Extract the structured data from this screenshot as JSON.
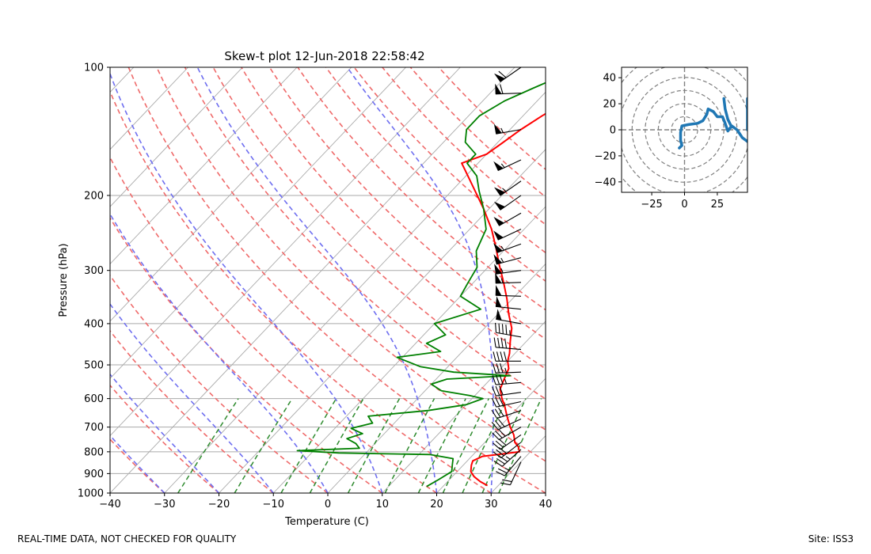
{
  "footer": {
    "left": "REAL-TIME DATA, NOT CHECKED FOR QUALITY",
    "right": "Site: ISS3"
  },
  "colors": {
    "temperature": "#ff0000",
    "dewpoint": "#008000",
    "dry_adiabats": "#ef6a6a",
    "moist_adiabats": "#6f6ff0",
    "mixing_ratio": "#2e8b2e",
    "isotherms": "#aaaaaa",
    "hodograph": "#1f77b4",
    "barbs": "#000000"
  },
  "chart_data": [
    {
      "type": "skew-t",
      "title": "Skew-t plot 12-Jun-2018 22:58:42",
      "xlabel": "Temperature (C)",
      "ylabel": "Pressure (hPa)",
      "xlim": [
        -40,
        40
      ],
      "ylim": [
        1000,
        100
      ],
      "y_scale": "log",
      "grid": true,
      "x_ticks": [
        "−40",
        "−30",
        "−20",
        "−10",
        "0",
        "10",
        "20",
        "30",
        "40"
      ],
      "y_ticks": [
        "100",
        "200",
        "300",
        "400",
        "500",
        "600",
        "700",
        "800",
        "900",
        "1000"
      ],
      "temperature": [
        {
          "p": 960,
          "t": 28
        },
        {
          "p": 940,
          "t": 26
        },
        {
          "p": 915,
          "t": 24
        },
        {
          "p": 890,
          "t": 22.5
        },
        {
          "p": 860,
          "t": 21.5
        },
        {
          "p": 840,
          "t": 21
        },
        {
          "p": 820,
          "t": 22
        },
        {
          "p": 800,
          "t": 28
        },
        {
          "p": 780,
          "t": 27
        },
        {
          "p": 760,
          "t": 25.5
        },
        {
          "p": 730,
          "t": 24
        },
        {
          "p": 700,
          "t": 22
        },
        {
          "p": 660,
          "t": 19.5
        },
        {
          "p": 620,
          "t": 17
        },
        {
          "p": 600,
          "t": 15.5
        },
        {
          "p": 570,
          "t": 13.5
        },
        {
          "p": 540,
          "t": 12.5
        },
        {
          "p": 510,
          "t": 11.5
        },
        {
          "p": 490,
          "t": 10
        },
        {
          "p": 470,
          "t": 9
        },
        {
          "p": 440,
          "t": 7
        },
        {
          "p": 410,
          "t": 5
        },
        {
          "p": 380,
          "t": 2
        },
        {
          "p": 350,
          "t": -1
        },
        {
          "p": 320,
          "t": -4.5
        },
        {
          "p": 290,
          "t": -8.5
        },
        {
          "p": 265,
          "t": -12
        },
        {
          "p": 240,
          "t": -16
        },
        {
          "p": 215,
          "t": -21
        },
        {
          "p": 190,
          "t": -27
        },
        {
          "p": 175,
          "t": -31
        },
        {
          "p": 168,
          "t": -33
        },
        {
          "p": 160,
          "t": -30
        },
        {
          "p": 150,
          "t": -29
        },
        {
          "p": 140,
          "t": -28
        },
        {
          "p": 130,
          "t": -26.5
        },
        {
          "p": 120,
          "t": -24.5
        },
        {
          "p": 112,
          "t": -22.5
        },
        {
          "p": 106,
          "t": -25.5
        },
        {
          "p": 100,
          "t": -25.5
        }
      ],
      "dewpoint": [
        {
          "p": 965,
          "t": 17
        },
        {
          "p": 930,
          "t": 18
        },
        {
          "p": 890,
          "t": 19
        },
        {
          "p": 860,
          "t": 18
        },
        {
          "p": 830,
          "t": 17
        },
        {
          "p": 812,
          "t": 12
        },
        {
          "p": 805,
          "t": -5
        },
        {
          "p": 795,
          "t": -13
        },
        {
          "p": 785,
          "t": -2
        },
        {
          "p": 765,
          "t": -3.5
        },
        {
          "p": 745,
          "t": -6
        },
        {
          "p": 725,
          "t": -4
        },
        {
          "p": 705,
          "t": -7
        },
        {
          "p": 685,
          "t": -4
        },
        {
          "p": 660,
          "t": -6
        },
        {
          "p": 640,
          "t": 4
        },
        {
          "p": 620,
          "t": 10
        },
        {
          "p": 600,
          "t": 12
        },
        {
          "p": 590,
          "t": 9
        },
        {
          "p": 575,
          "t": 3
        },
        {
          "p": 555,
          "t": 0
        },
        {
          "p": 540,
          "t": 2
        },
        {
          "p": 530,
          "t": 13
        },
        {
          "p": 520,
          "t": 2
        },
        {
          "p": 505,
          "t": -5
        },
        {
          "p": 480,
          "t": -11
        },
        {
          "p": 465,
          "t": -4
        },
        {
          "p": 445,
          "t": -8
        },
        {
          "p": 425,
          "t": -6
        },
        {
          "p": 400,
          "t": -10
        },
        {
          "p": 370,
          "t": -4
        },
        {
          "p": 345,
          "t": -10
        },
        {
          "p": 320,
          "t": -11
        },
        {
          "p": 295,
          "t": -12
        },
        {
          "p": 270,
          "t": -15
        },
        {
          "p": 240,
          "t": -17
        },
        {
          "p": 215,
          "t": -21
        },
        {
          "p": 195,
          "t": -25
        },
        {
          "p": 180,
          "t": -28
        },
        {
          "p": 168,
          "t": -32
        },
        {
          "p": 160,
          "t": -32
        },
        {
          "p": 150,
          "t": -36
        },
        {
          "p": 140,
          "t": -38
        },
        {
          "p": 130,
          "t": -38
        },
        {
          "p": 120,
          "t": -36
        },
        {
          "p": 112,
          "t": -33
        },
        {
          "p": 105,
          "t": -30
        },
        {
          "p": 100,
          "t": -28
        }
      ],
      "wind_barbs": [
        {
          "p": 100,
          "speed": 60,
          "dir": 235
        },
        {
          "p": 115,
          "speed": 60,
          "dir": 268
        },
        {
          "p": 140,
          "speed": 55,
          "dir": 260
        },
        {
          "p": 165,
          "speed": 55,
          "dir": 245
        },
        {
          "p": 185,
          "speed": 55,
          "dir": 235
        },
        {
          "p": 200,
          "speed": 50,
          "dir": 235
        },
        {
          "p": 220,
          "speed": 50,
          "dir": 240
        },
        {
          "p": 240,
          "speed": 50,
          "dir": 245
        },
        {
          "p": 260,
          "speed": 55,
          "dir": 250
        },
        {
          "p": 280,
          "speed": 55,
          "dir": 255
        },
        {
          "p": 300,
          "speed": 55,
          "dir": 262
        },
        {
          "p": 320,
          "speed": 55,
          "dir": 268
        },
        {
          "p": 345,
          "speed": 50,
          "dir": 272
        },
        {
          "p": 370,
          "speed": 50,
          "dir": 276
        },
        {
          "p": 400,
          "speed": 50,
          "dir": 280
        },
        {
          "p": 430,
          "speed": 45,
          "dir": 280
        },
        {
          "p": 460,
          "speed": 40,
          "dir": 275
        },
        {
          "p": 490,
          "speed": 40,
          "dir": 270
        },
        {
          "p": 520,
          "speed": 35,
          "dir": 268
        },
        {
          "p": 550,
          "speed": 35,
          "dir": 265
        },
        {
          "p": 580,
          "speed": 30,
          "dir": 262
        },
        {
          "p": 610,
          "speed": 30,
          "dir": 258
        },
        {
          "p": 640,
          "speed": 30,
          "dir": 252
        },
        {
          "p": 670,
          "speed": 30,
          "dir": 245
        },
        {
          "p": 700,
          "speed": 30,
          "dir": 240
        },
        {
          "p": 730,
          "speed": 30,
          "dir": 235
        },
        {
          "p": 760,
          "speed": 30,
          "dir": 232
        },
        {
          "p": 790,
          "speed": 35,
          "dir": 228
        },
        {
          "p": 820,
          "speed": 25,
          "dir": 220
        },
        {
          "p": 845,
          "speed": 20,
          "dir": 205
        }
      ]
    },
    {
      "type": "hodograph",
      "xlim": [
        -48,
        48
      ],
      "ylim": [
        -48,
        48
      ],
      "x_ticks": [
        "−25",
        "0",
        "25"
      ],
      "y_ticks": [
        "40",
        "20",
        "0",
        "−20",
        "−40"
      ],
      "rings": [
        10,
        20,
        30,
        40,
        50,
        60
      ],
      "points": [
        {
          "u": -4,
          "v": -14
        },
        {
          "u": -2,
          "v": -12
        },
        {
          "u": -3,
          "v": -8
        },
        {
          "u": -3,
          "v": -2
        },
        {
          "u": -2,
          "v": 3
        },
        {
          "u": 3,
          "v": 4
        },
        {
          "u": 10,
          "v": 5
        },
        {
          "u": 14,
          "v": 7
        },
        {
          "u": 17,
          "v": 12
        },
        {
          "u": 18,
          "v": 16
        },
        {
          "u": 22,
          "v": 14
        },
        {
          "u": 25,
          "v": 10
        },
        {
          "u": 29,
          "v": 10
        },
        {
          "u": 31,
          "v": 5
        },
        {
          "u": 33,
          "v": -1
        },
        {
          "u": 36,
          "v": 3
        },
        {
          "u": 40,
          "v": 0
        },
        {
          "u": 42,
          "v": -3
        },
        {
          "u": 44,
          "v": -6
        },
        {
          "u": 48,
          "v": -9
        }
      ],
      "spur": [
        {
          "u": 36,
          "v": 2
        },
        {
          "u": 33,
          "v": 8
        },
        {
          "u": 31,
          "v": 16
        },
        {
          "u": 30,
          "v": 24
        }
      ],
      "edge_spur": [
        {
          "u": 48,
          "v": 0
        },
        {
          "u": 48,
          "v": 24
        }
      ]
    }
  ]
}
